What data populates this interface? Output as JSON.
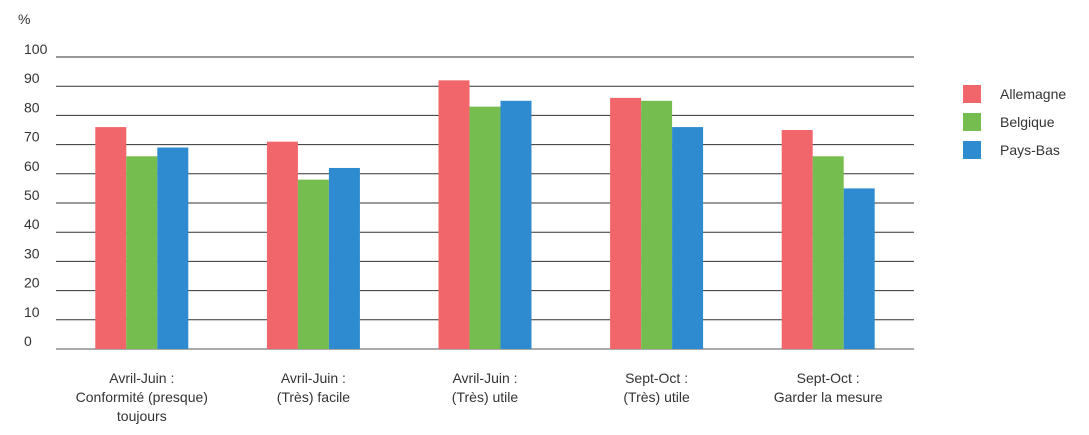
{
  "chart_data": {
    "type": "bar",
    "title": "",
    "xlabel": "",
    "ylabel": "%",
    "ylim": [
      0,
      100
    ],
    "yticks": [
      0,
      10,
      20,
      30,
      40,
      50,
      60,
      70,
      80,
      90,
      100
    ],
    "grid": true,
    "legend_position": "right",
    "categories": [
      [
        "Avril-Juin :",
        "Conformité (presque)",
        "toujours"
      ],
      [
        "Avril-Juin :",
        "(Très) facile"
      ],
      [
        "Avril-Juin :",
        "(Très) utile"
      ],
      [
        "Sept-Oct :",
        "(Très) utile"
      ],
      [
        "Sept-Oct :",
        "Garder la mesure"
      ]
    ],
    "series": [
      {
        "name": "Allemagne",
        "color": "#f0666a",
        "values": [
          76,
          71,
          92,
          86,
          75
        ]
      },
      {
        "name": "Belgique",
        "color": "#76bd4f",
        "values": [
          66,
          58,
          83,
          85,
          66
        ]
      },
      {
        "name": "Pays-Bas",
        "color": "#2f8bcf",
        "values": [
          69,
          62,
          85,
          76,
          55
        ]
      }
    ]
  }
}
